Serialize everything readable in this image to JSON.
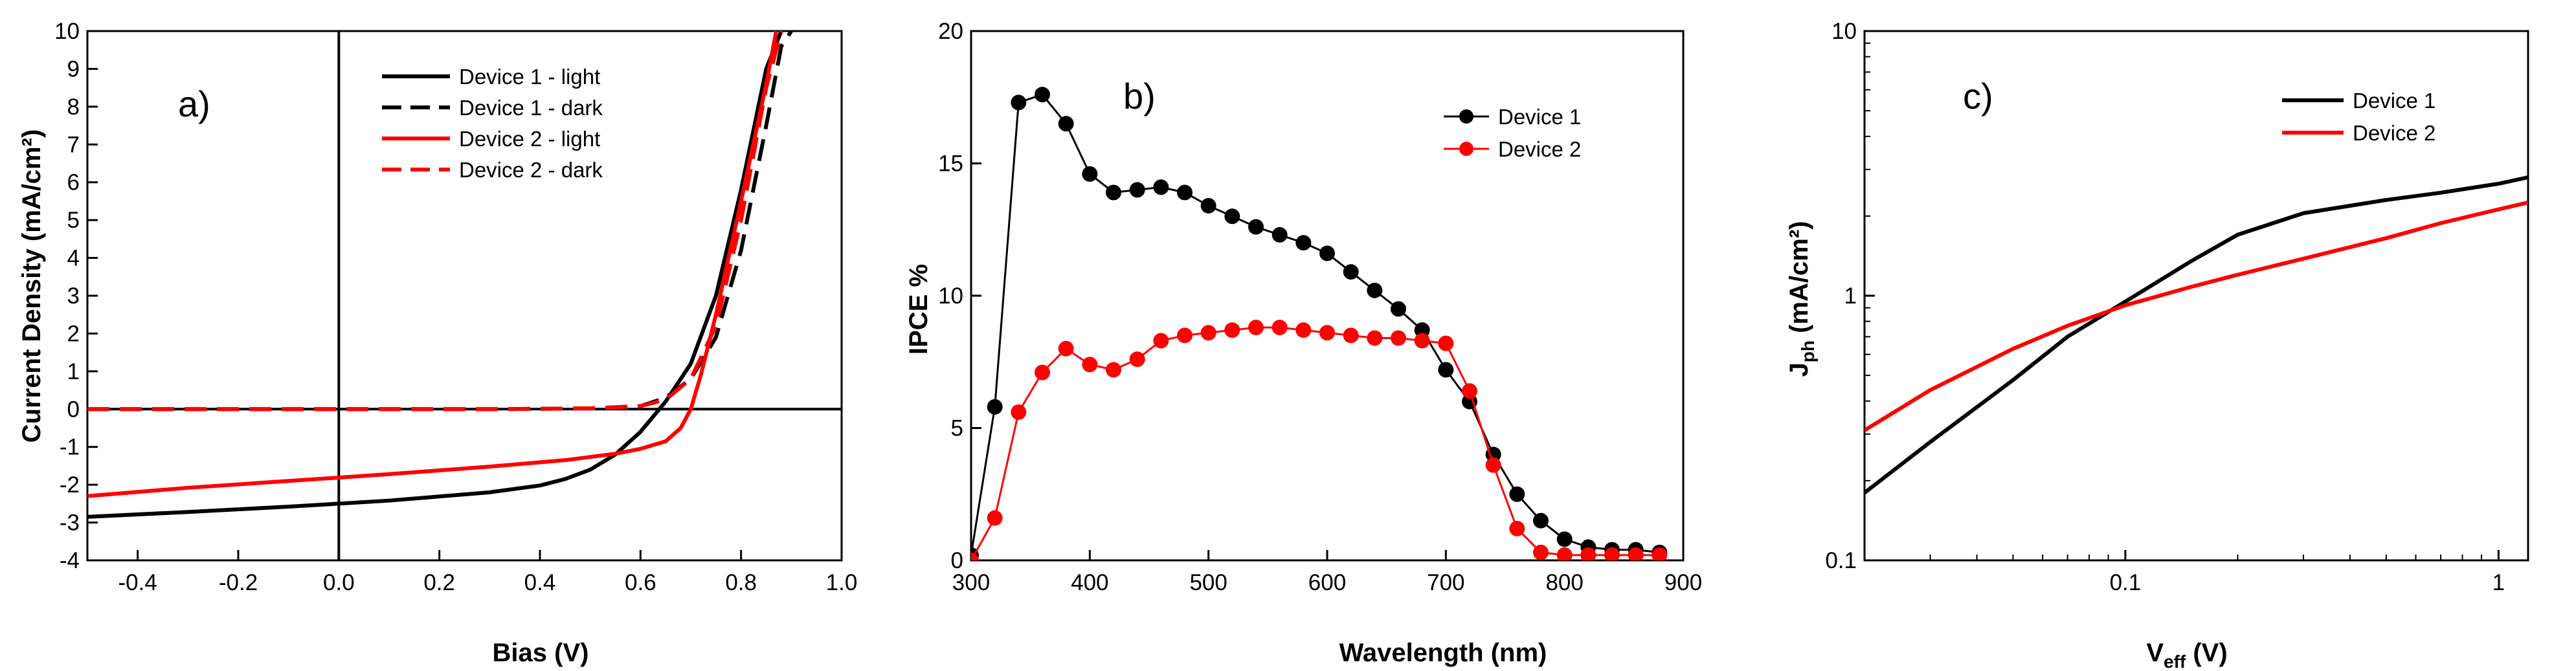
{
  "chart_data": [
    {
      "panel": "a)",
      "type": "line",
      "xlabel": "Bias (V)",
      "ylabel": "Current Density (mA/cm²)",
      "xlim": [
        -0.5,
        1.0
      ],
      "ylim": [
        -4,
        10
      ],
      "xticks": [
        -0.4,
        -0.2,
        0.0,
        0.2,
        0.4,
        0.6,
        0.8,
        1.0
      ],
      "xtick_labels": [
        "-0.4",
        "-0.2",
        "0.0",
        "0.2",
        "0.4",
        "0.6",
        "0.8",
        "1.0"
      ],
      "yticks": [
        -4,
        -3,
        -2,
        -1,
        0,
        1,
        2,
        3,
        4,
        5,
        6,
        7,
        8,
        9,
        10
      ],
      "ytick_labels": [
        "-4",
        "-3",
        "-2",
        "-1",
        "0",
        "1",
        "2",
        "3",
        "4",
        "5",
        "6",
        "7",
        "8",
        "9",
        "10"
      ],
      "legend": "top-right",
      "series": [
        {
          "name": "Device 1 - light",
          "color": "#000000",
          "dash": false,
          "x": [
            -0.5,
            -0.3,
            -0.1,
            0.1,
            0.3,
            0.4,
            0.45,
            0.5,
            0.55,
            0.6,
            0.65,
            0.7,
            0.75,
            0.8,
            0.85,
            0.88
          ],
          "y": [
            -2.85,
            -2.72,
            -2.58,
            -2.42,
            -2.2,
            -2.02,
            -1.85,
            -1.6,
            -1.2,
            -0.6,
            0.2,
            1.2,
            3.0,
            5.8,
            9.0,
            10.0
          ]
        },
        {
          "name": "Device 1 - dark",
          "color": "#000000",
          "dash": true,
          "x": [
            -0.5,
            0.0,
            0.3,
            0.5,
            0.6,
            0.65,
            0.7,
            0.75,
            0.8,
            0.85,
            0.88,
            0.9
          ],
          "y": [
            0.0,
            0.0,
            0.0,
            0.02,
            0.08,
            0.3,
            0.8,
            1.9,
            4.2,
            7.5,
            9.6,
            10.0
          ]
        },
        {
          "name": "Device 2 - light",
          "color": "#ff0000",
          "dash": false,
          "x": [
            -0.5,
            -0.3,
            -0.1,
            0.1,
            0.3,
            0.45,
            0.55,
            0.6,
            0.65,
            0.68,
            0.7,
            0.72,
            0.75,
            0.8,
            0.85,
            0.87
          ],
          "y": [
            -2.3,
            -2.08,
            -1.9,
            -1.72,
            -1.52,
            -1.35,
            -1.18,
            -1.05,
            -0.85,
            -0.5,
            0.0,
            0.9,
            2.5,
            5.5,
            8.6,
            10.0
          ]
        },
        {
          "name": "Device 2 - dark",
          "color": "#ff0000",
          "dash": true,
          "x": [
            -0.5,
            0.0,
            0.3,
            0.5,
            0.6,
            0.65,
            0.7,
            0.75,
            0.8,
            0.85,
            0.88
          ],
          "y": [
            0.0,
            0.0,
            0.0,
            0.02,
            0.08,
            0.25,
            0.8,
            2.2,
            5.0,
            8.5,
            10.0
          ]
        }
      ]
    },
    {
      "panel": "b)",
      "type": "line",
      "xlabel": "Wavelength (nm)",
      "ylabel": "IPCE %",
      "xlim": [
        300,
        900
      ],
      "ylim": [
        0,
        20
      ],
      "xticks": [
        300,
        400,
        500,
        600,
        700,
        800,
        900
      ],
      "xtick_labels": [
        "300",
        "400",
        "500",
        "600",
        "700",
        "800",
        "900"
      ],
      "yticks": [
        0,
        5,
        10,
        15,
        20
      ],
      "ytick_labels": [
        "0",
        "5",
        "10",
        "15",
        "20"
      ],
      "legend": "top-right",
      "series": [
        {
          "name": "Device 1",
          "color": "#000000",
          "markers": true,
          "x": [
            300,
            320,
            340,
            360,
            380,
            400,
            420,
            440,
            460,
            480,
            500,
            520,
            540,
            560,
            580,
            600,
            620,
            640,
            660,
            680,
            700,
            720,
            740,
            760,
            780,
            800,
            820,
            840,
            860,
            880
          ],
          "y": [
            0.2,
            5.8,
            17.3,
            17.6,
            16.5,
            14.6,
            13.9,
            14.0,
            14.1,
            13.9,
            13.4,
            13.0,
            12.6,
            12.3,
            12.0,
            11.6,
            10.9,
            10.2,
            9.5,
            8.7,
            7.2,
            6.0,
            4.0,
            2.5,
            1.5,
            0.8,
            0.5,
            0.4,
            0.4,
            0.3
          ]
        },
        {
          "name": "Device 2",
          "color": "#ff0000",
          "markers": true,
          "x": [
            300,
            320,
            340,
            360,
            380,
            400,
            420,
            440,
            460,
            480,
            500,
            520,
            540,
            560,
            580,
            600,
            620,
            640,
            660,
            680,
            700,
            720,
            740,
            760,
            780,
            800,
            820,
            840,
            860,
            880
          ],
          "y": [
            0.0,
            1.6,
            5.6,
            7.1,
            8.0,
            7.4,
            7.2,
            7.6,
            8.3,
            8.5,
            8.6,
            8.7,
            8.8,
            8.8,
            8.7,
            8.6,
            8.5,
            8.4,
            8.4,
            8.3,
            8.2,
            6.4,
            3.6,
            1.2,
            0.3,
            0.2,
            0.2,
            0.2,
            0.2,
            0.2
          ]
        }
      ]
    },
    {
      "panel": "c)",
      "type": "line",
      "xscale": "log",
      "yscale": "log",
      "xlabel": "V",
      "xlabel_sub": "eff",
      "xlabel_suffix": " (V)",
      "ylabel": "J",
      "ylabel_sub": "ph",
      "ylabel_suffix": " (mA/cm²)",
      "xlim": [
        0.02,
        1.2
      ],
      "ylim": [
        0.1,
        10
      ],
      "xticks": [
        0.1,
        1
      ],
      "xtick_labels": [
        "0.1",
        "1"
      ],
      "yticks": [
        0.1,
        1,
        10
      ],
      "ytick_labels": [
        "0.1",
        "1",
        "10"
      ],
      "legend": "top-right",
      "series": [
        {
          "name": "Device 1",
          "color": "#000000",
          "x": [
            0.02,
            0.03,
            0.05,
            0.07,
            0.1,
            0.15,
            0.2,
            0.3,
            0.5,
            0.7,
            1.0,
            1.2
          ],
          "y": [
            0.18,
            0.28,
            0.48,
            0.7,
            0.95,
            1.35,
            1.7,
            2.05,
            2.3,
            2.45,
            2.65,
            2.8
          ]
        },
        {
          "name": "Device 2",
          "color": "#ff0000",
          "x": [
            0.02,
            0.03,
            0.05,
            0.07,
            0.1,
            0.15,
            0.2,
            0.3,
            0.5,
            0.7,
            1.0,
            1.2
          ],
          "y": [
            0.31,
            0.44,
            0.63,
            0.77,
            0.92,
            1.08,
            1.2,
            1.38,
            1.65,
            1.88,
            2.12,
            2.25
          ]
        }
      ]
    }
  ]
}
